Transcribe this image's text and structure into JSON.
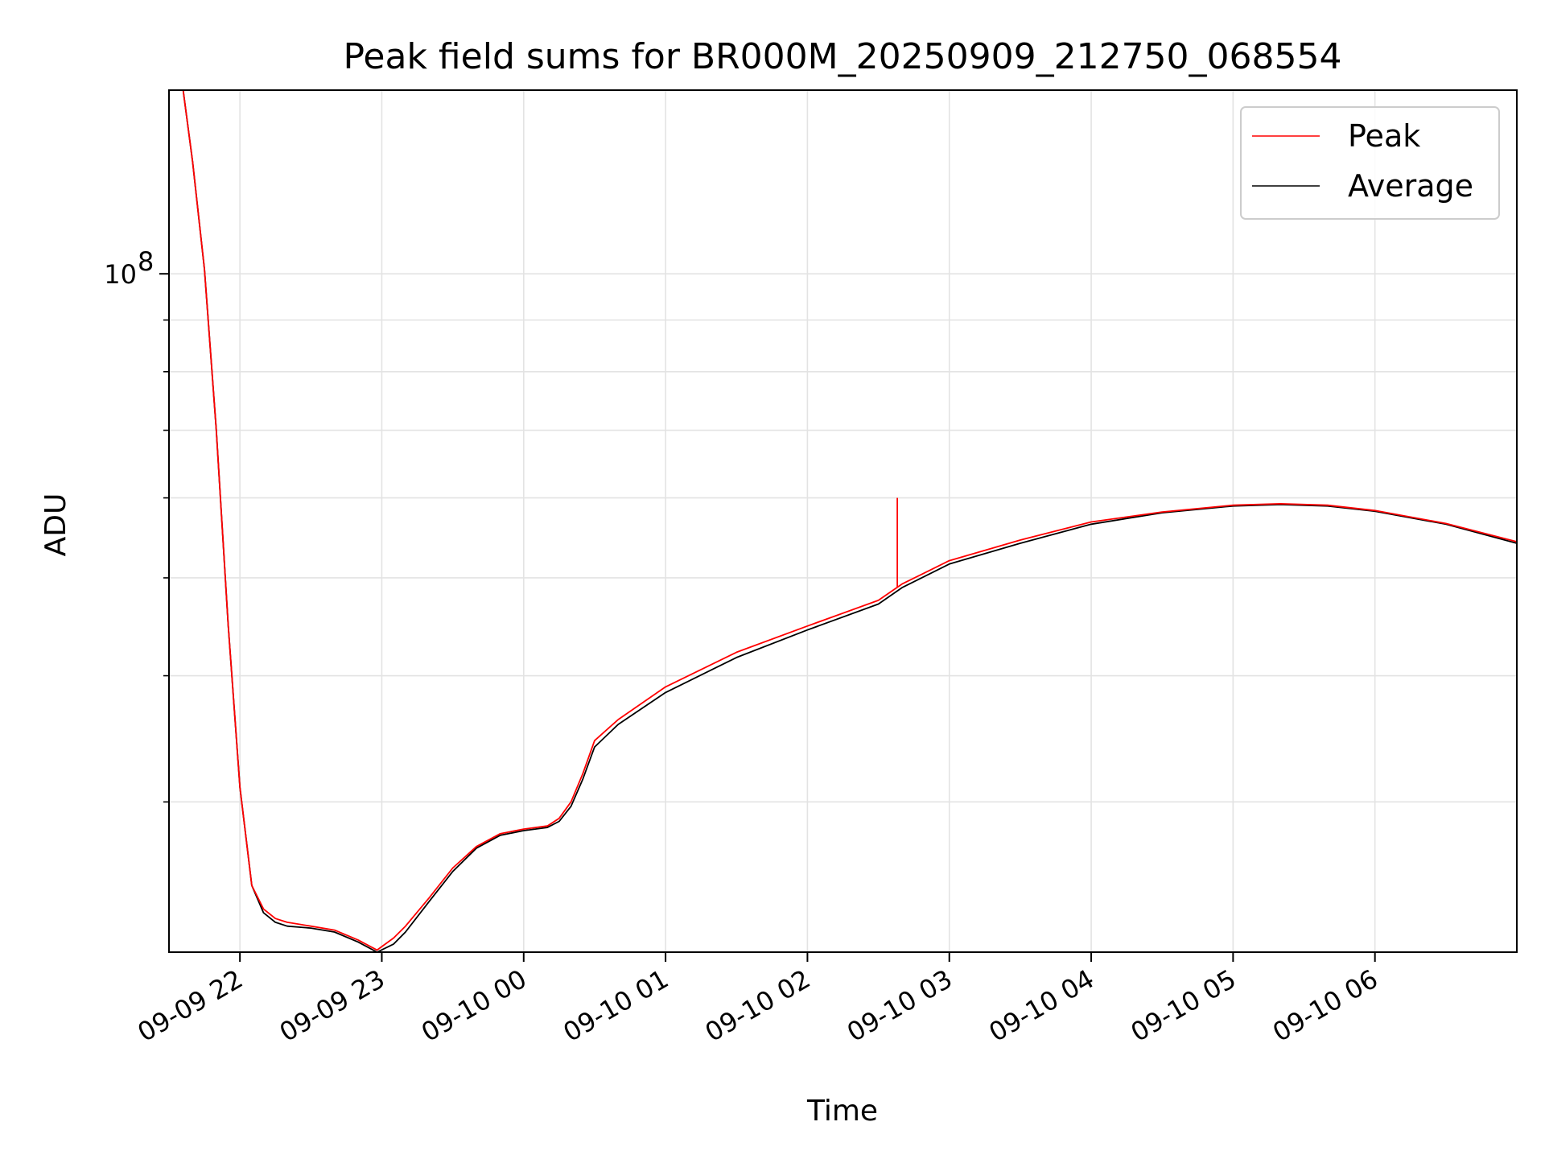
{
  "chart_data": {
    "type": "line",
    "title": "Peak field sums for BR000M_20250909_212750_068554",
    "xlabel": "Time",
    "ylabel": "ADU",
    "yscale": "log",
    "xlim": [
      "2025-09-09 21:30",
      "2025-09-10 07:00"
    ],
    "ylim": [
      21300000,
      152000000
    ],
    "x_ticks": [
      {
        "value": "2025-09-09 22:00",
        "label": "09-09 22"
      },
      {
        "value": "2025-09-09 23:00",
        "label": "09-09 23"
      },
      {
        "value": "2025-09-10 00:00",
        "label": "09-10 00"
      },
      {
        "value": "2025-09-10 01:00",
        "label": "09-10 01"
      },
      {
        "value": "2025-09-10 02:00",
        "label": "09-10 02"
      },
      {
        "value": "2025-09-10 03:00",
        "label": "09-10 03"
      },
      {
        "value": "2025-09-10 04:00",
        "label": "09-10 04"
      },
      {
        "value": "2025-09-10 05:00",
        "label": "09-10 05"
      },
      {
        "value": "2025-09-10 06:00",
        "label": "09-10 06"
      }
    ],
    "y_major_ticks": [
      {
        "value": 100000000,
        "label_base": "10",
        "label_exp": "8"
      }
    ],
    "y_minor_ticks": [
      30000000,
      40000000,
      50000000,
      60000000,
      70000000,
      80000000,
      90000000
    ],
    "grid": true,
    "legend": {
      "position": "top-right",
      "entries": [
        "Peak",
        "Average"
      ]
    },
    "series": [
      {
        "name": "Peak",
        "color": "#ff0000",
        "x": [
          "2025-09-09 21:30",
          "2025-09-09 21:36",
          "2025-09-09 21:40",
          "2025-09-09 21:45",
          "2025-09-09 21:50",
          "2025-09-09 21:55",
          "2025-09-09 22:00",
          "2025-09-09 22:05",
          "2025-09-09 22:10",
          "2025-09-09 22:15",
          "2025-09-09 22:20",
          "2025-09-09 22:30",
          "2025-09-09 22:40",
          "2025-09-09 22:50",
          "2025-09-09 22:58",
          "2025-09-09 23:05",
          "2025-09-09 23:10",
          "2025-09-09 23:20",
          "2025-09-09 23:30",
          "2025-09-09 23:40",
          "2025-09-09 23:50",
          "2025-09-10 00:00",
          "2025-09-10 00:10",
          "2025-09-10 00:15",
          "2025-09-10 00:20",
          "2025-09-10 00:25",
          "2025-09-10 00:30",
          "2025-09-10 00:40",
          "2025-09-10 01:00",
          "2025-09-10 01:30",
          "2025-09-10 02:00",
          "2025-09-10 02:30",
          "2025-09-10 02:40",
          "2025-09-10 03:00",
          "2025-09-10 03:30",
          "2025-09-10 04:00",
          "2025-09-10 04:30",
          "2025-09-10 05:00",
          "2025-09-10 05:20",
          "2025-09-10 05:40",
          "2025-09-10 06:00",
          "2025-09-10 06:30",
          "2025-09-10 07:00"
        ],
        "values": [
          152000000,
          152000000,
          129000000,
          101000000,
          70000000,
          45000000,
          31000000,
          24800000,
          23500000,
          23000000,
          22800000,
          22600000,
          22400000,
          21900000,
          21400000,
          22000000,
          22600000,
          24100000,
          25800000,
          27100000,
          27900000,
          28200000,
          28400000,
          28900000,
          30000000,
          32000000,
          34500000,
          36200000,
          39000000,
          42200000,
          44800000,
          47500000,
          49300000,
          52000000,
          54500000,
          56800000,
          58100000,
          59000000,
          59200000,
          59000000,
          58300000,
          56600000,
          54300000
        ]
      },
      {
        "name": "Average",
        "color": "#000000",
        "x": [
          "2025-09-09 21:30",
          "2025-09-09 21:36",
          "2025-09-09 21:40",
          "2025-09-09 21:45",
          "2025-09-09 21:50",
          "2025-09-09 21:55",
          "2025-09-09 22:00",
          "2025-09-09 22:05",
          "2025-09-09 22:10",
          "2025-09-09 22:15",
          "2025-09-09 22:20",
          "2025-09-09 22:30",
          "2025-09-09 22:40",
          "2025-09-09 22:50",
          "2025-09-09 22:58",
          "2025-09-09 23:05",
          "2025-09-09 23:10",
          "2025-09-09 23:20",
          "2025-09-09 23:30",
          "2025-09-09 23:40",
          "2025-09-09 23:50",
          "2025-09-10 00:00",
          "2025-09-10 00:10",
          "2025-09-10 00:15",
          "2025-09-10 00:20",
          "2025-09-10 00:25",
          "2025-09-10 00:30",
          "2025-09-10 00:40",
          "2025-09-10 01:00",
          "2025-09-10 01:30",
          "2025-09-10 02:00",
          "2025-09-10 02:30",
          "2025-09-10 02:40",
          "2025-09-10 03:00",
          "2025-09-10 03:30",
          "2025-09-10 04:00",
          "2025-09-10 04:30",
          "2025-09-10 05:00",
          "2025-09-10 05:20",
          "2025-09-10 05:40",
          "2025-09-10 06:00",
          "2025-09-10 06:30",
          "2025-09-10 07:00"
        ],
        "values": [
          152000000,
          152000000,
          129000000,
          101000000,
          70000000,
          45000000,
          31000000,
          24800000,
          23300000,
          22800000,
          22600000,
          22500000,
          22300000,
          21800000,
          21300000,
          21700000,
          22300000,
          23900000,
          25600000,
          27000000,
          27800000,
          28100000,
          28300000,
          28700000,
          29700000,
          31600000,
          34000000,
          35800000,
          38500000,
          41700000,
          44400000,
          47100000,
          48900000,
          51600000,
          54100000,
          56500000,
          58000000,
          58900000,
          59100000,
          58900000,
          58200000,
          56500000,
          54100000
        ]
      }
    ],
    "spikes": [
      {
        "series": "Peak",
        "x": "2025-09-10 02:38",
        "value": 60000000
      }
    ]
  }
}
